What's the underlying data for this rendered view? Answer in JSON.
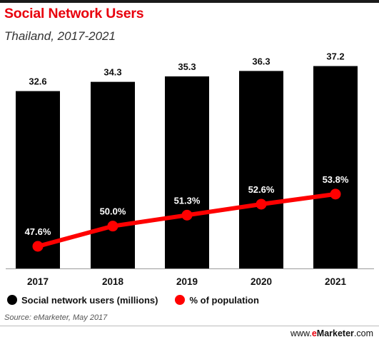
{
  "header": {
    "title": "Social Network Users",
    "subtitle": "Thailand, 2017-2021"
  },
  "legend": [
    {
      "label": "Social network users (millions)",
      "color": "#000000"
    },
    {
      "label": "% of population",
      "color": "#ff0000"
    }
  ],
  "footer": {
    "source": "Source: eMarketer, May 2017",
    "brand_prefix": "www.",
    "brand_e": "e",
    "brand_name": "Marketer",
    "brand_suffix": ".com"
  },
  "chart_data": {
    "type": "bar",
    "categories": [
      "2017",
      "2018",
      "2019",
      "2020",
      "2021"
    ],
    "series": [
      {
        "name": "Social network users (millions)",
        "type": "bar",
        "values": [
          32.6,
          34.3,
          35.3,
          36.3,
          37.2
        ],
        "labels": [
          "32.6",
          "34.3",
          "35.3",
          "36.3",
          "37.2"
        ],
        "color": "#000000"
      },
      {
        "name": "% of population",
        "type": "line",
        "values": [
          47.6,
          50.0,
          51.3,
          52.6,
          53.8
        ],
        "labels": [
          "47.6%",
          "50.0%",
          "51.3%",
          "52.6%",
          "53.8%"
        ],
        "color": "#ff0000"
      }
    ],
    "xlabel": "",
    "ylabel": "",
    "grid": false,
    "legend_position": "bottom"
  }
}
